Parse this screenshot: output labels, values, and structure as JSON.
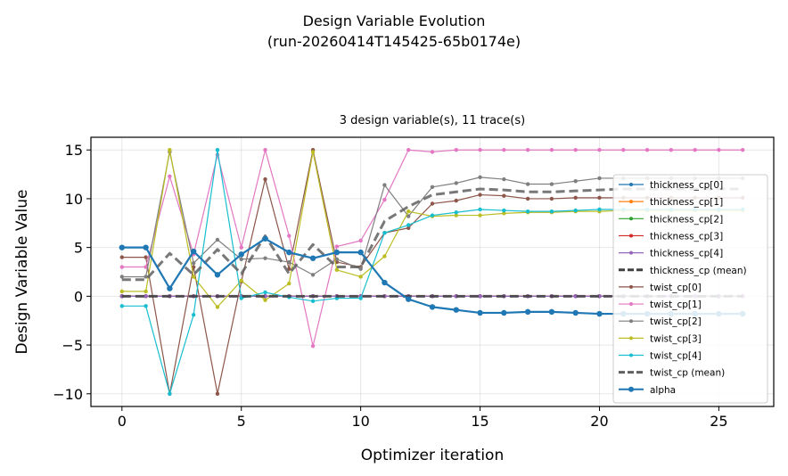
{
  "chart_data": {
    "type": "line",
    "suptitle_line1": "Design Variable Evolution",
    "suptitle_line2": "(run-20260414T145425-65b0174e)",
    "title": "3 design variable(s), 11 trace(s)",
    "xlabel": "Optimizer iteration",
    "ylabel": "Design Variable Value",
    "xlim": [
      -1.3,
      27.3
    ],
    "ylim": [
      -11.3,
      16.3
    ],
    "xticks": [
      0,
      5,
      10,
      15,
      20,
      25
    ],
    "yticks": [
      -10,
      -5,
      0,
      5,
      10,
      15
    ],
    "grid": true,
    "legend_position": "right",
    "x": [
      0,
      1,
      2,
      3,
      4,
      5,
      6,
      7,
      8,
      9,
      10,
      11,
      12,
      13,
      14,
      15,
      16,
      17,
      18,
      19,
      20,
      21,
      22,
      23,
      24,
      25,
      26
    ],
    "series": [
      {
        "name": "thickness_cp[0]",
        "color": "#1f77b4",
        "style": "thin",
        "values": [
          0,
          0,
          0,
          0,
          0,
          0,
          0,
          0,
          0,
          0,
          0,
          0,
          0,
          0,
          0,
          0,
          0,
          0,
          0,
          0,
          0,
          0,
          0,
          0,
          0,
          0,
          0
        ]
      },
      {
        "name": "thickness_cp[1]",
        "color": "#ff7f0e",
        "style": "thin",
        "values": [
          0,
          0,
          0,
          0,
          0,
          0,
          0,
          0,
          0,
          0,
          0,
          0,
          0,
          0,
          0,
          0,
          0,
          0,
          0,
          0,
          0,
          0,
          0,
          0,
          0,
          0,
          0
        ]
      },
      {
        "name": "thickness_cp[2]",
        "color": "#2ca02c",
        "style": "thin",
        "values": [
          0,
          0,
          0,
          0,
          0,
          0,
          0,
          0,
          0,
          0,
          0,
          0,
          0,
          0,
          0,
          0,
          0,
          0,
          0,
          0,
          0,
          0,
          0,
          0,
          0,
          0,
          0
        ]
      },
      {
        "name": "thickness_cp[3]",
        "color": "#d62728",
        "style": "thin",
        "values": [
          0,
          0,
          0,
          0,
          0,
          0,
          0,
          0,
          0,
          0,
          0,
          0,
          0,
          0,
          0,
          0,
          0,
          0,
          0,
          0,
          0,
          0,
          0,
          0,
          0,
          0,
          0
        ]
      },
      {
        "name": "thickness_cp[4]",
        "color": "#9467bd",
        "style": "thin",
        "values": [
          0,
          0,
          0,
          0,
          0,
          0,
          0,
          0,
          0,
          0,
          0,
          0,
          0,
          0,
          0,
          0,
          0,
          0,
          0,
          0,
          0,
          0,
          0,
          0,
          0,
          0,
          0
        ]
      },
      {
        "name": "thickness_cp (mean)",
        "color": "#404040",
        "style": "mean",
        "values": [
          0,
          0,
          0,
          0,
          0,
          0,
          0,
          0,
          0,
          0,
          0,
          0,
          0,
          0,
          0,
          0,
          0,
          0,
          0,
          0,
          0,
          0,
          0,
          0,
          0,
          0,
          0
        ]
      },
      {
        "name": "twist_cp[0]",
        "color": "#8c564b",
        "style": "thin",
        "values": [
          4,
          4,
          -10,
          3,
          -10,
          1.5,
          12,
          2.8,
          15,
          3.5,
          3,
          6.5,
          7,
          9.5,
          9.8,
          10.4,
          10.3,
          10,
          10,
          10.1,
          10.1,
          10.1,
          10.1,
          10.1,
          10.1,
          10.1,
          10.1
        ]
      },
      {
        "name": "twist_cp[1]",
        "color": "#e377c2",
        "style": "thin",
        "values": [
          3,
          3,
          12.3,
          4.3,
          14.5,
          5,
          15,
          6.2,
          -5.1,
          5.1,
          5.7,
          9.9,
          15,
          14.8,
          15,
          15,
          15,
          15,
          15,
          15,
          15,
          15,
          15,
          15,
          15,
          15,
          15
        ]
      },
      {
        "name": "twist_cp[2]",
        "color": "#7f7f7f",
        "style": "thin",
        "values": [
          2,
          2,
          14.8,
          3.4,
          5.8,
          3.8,
          3.9,
          3.5,
          2.2,
          3.8,
          2.8,
          11.4,
          8.2,
          11.2,
          11.6,
          12.2,
          12,
          11.5,
          11.5,
          11.8,
          12.1,
          12.1,
          12.1,
          12.1,
          12.1,
          12.1,
          12.1
        ]
      },
      {
        "name": "twist_cp[3]",
        "color": "#bcbd22",
        "style": "thin",
        "values": [
          0.5,
          0.5,
          15,
          2,
          -1.1,
          1.6,
          -0.4,
          1.3,
          14.8,
          2.7,
          2,
          4.1,
          8.7,
          8.2,
          8.3,
          8.3,
          8.5,
          8.6,
          8.6,
          8.7,
          8.7,
          8.8,
          8.8,
          8.8,
          8.8,
          8.8,
          8.8
        ]
      },
      {
        "name": "twist_cp[4]",
        "color": "#17becf",
        "style": "thin",
        "values": [
          -1,
          -1,
          -10,
          -1.9,
          15,
          -0.2,
          0.4,
          -0.1,
          -0.5,
          -0.2,
          -0.2,
          6.5,
          7.3,
          8.3,
          8.6,
          8.9,
          8.8,
          8.7,
          8.7,
          8.8,
          8.9,
          8.9,
          8.9,
          8.9,
          8.9,
          8.9,
          8.9
        ]
      },
      {
        "name": "twist_cp (mean)",
        "color": "#606060",
        "style": "mean",
        "values": [
          1.7,
          1.7,
          4.4,
          2.2,
          4.8,
          2.3,
          6.2,
          2.3,
          5.3,
          3,
          3,
          7.7,
          9.2,
          10.4,
          10.7,
          11,
          10.9,
          10.7,
          10.7,
          10.8,
          10.9,
          11,
          11,
          11,
          11,
          11,
          11
        ]
      },
      {
        "name": "alpha",
        "color": "#1f77b4",
        "style": "bold",
        "values": [
          5,
          5,
          0.8,
          4.6,
          2.2,
          4.3,
          5.9,
          4.5,
          3.9,
          4.5,
          4.5,
          1.4,
          -0.3,
          -1.1,
          -1.4,
          -1.7,
          -1.7,
          -1.6,
          -1.6,
          -1.7,
          -1.8,
          -1.8,
          -1.8,
          -1.8,
          -1.8,
          -1.8,
          -1.8
        ]
      }
    ]
  }
}
